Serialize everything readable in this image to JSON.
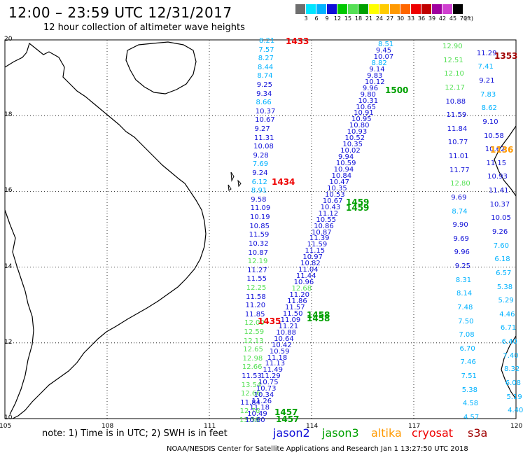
{
  "header": {
    "title": "12:00 – 23:59 UTC 12/31/2017",
    "subtitle": "12 hour collection of altimeter wave heights"
  },
  "color_scale": {
    "labels": [
      "3",
      "6",
      "9",
      "12",
      "15",
      "18",
      "21",
      "24",
      "27",
      "30",
      "33",
      "36",
      "39",
      "42",
      "45",
      "70"
    ],
    "unit": "(ft)",
    "colors": [
      "#6e6e6e",
      "#00e5ff",
      "#00b2ff",
      "#1010d8",
      "#00c800",
      "#55e055",
      "#00a000",
      "#ffff00",
      "#ffcc00",
      "#ff9900",
      "#ff6600",
      "#ee0000",
      "#c00000",
      "#a000a0",
      "#d040d0",
      "#000000"
    ]
  },
  "map": {
    "x_ticks": [
      "105",
      "108",
      "111",
      "114",
      "117",
      "120"
    ],
    "y_ticks": [
      "20",
      "18",
      "16",
      "14",
      "12",
      "10"
    ],
    "x_range": [
      105,
      120
    ],
    "y_range": [
      10,
      20
    ]
  },
  "tracks": {
    "track_a": {
      "satellite": "jason2",
      "values": [
        "8.21",
        "7.57",
        "8.27",
        "8.44",
        "8.74",
        "9.25",
        "9.34",
        "8.66",
        "10.37",
        "10.67",
        "9.27",
        "11.31",
        "10.08",
        "9.28",
        "7.69",
        "9.24",
        "6.12",
        "8.91",
        "9.58",
        "11.09",
        "10.19",
        "10.85",
        "11.59",
        "10.32",
        "10.87",
        "12.19",
        "11.27",
        "11.55",
        "12.25",
        "11.58",
        "11.20",
        "11.85",
        "12.00",
        "12.59",
        "12.13",
        "12.65",
        "12.98",
        "12.66",
        "11.53",
        "13.54",
        "12.66",
        "11.84",
        "12.76",
        "13.56"
      ]
    },
    "track_b": {
      "satellite": "jason2",
      "values": [
        "8.51",
        "9.45",
        "10.07",
        "8.82",
        "9.14",
        "9.83",
        "10.12",
        "9.96",
        "9.80",
        "10.31",
        "10.65",
        "10.91",
        "10.95",
        "10.80",
        "10.93",
        "10.52",
        "10.35",
        "10.02",
        "9.94",
        "10.59",
        "10.94",
        "10.84",
        "10.47",
        "10.35",
        "10.53",
        "10.67",
        "10.43",
        "11.12",
        "10.55",
        "10.86",
        "10.87",
        "11.39",
        "11.59",
        "11.15",
        "10.97",
        "10.82",
        "11.04",
        "11.44",
        "10.96",
        "12.68",
        "11.20",
        "11.86",
        "11.57",
        "11.50",
        "11.09",
        "11.21",
        "10.88",
        "10.64",
        "10.42",
        "10.59",
        "11.18",
        "11.13",
        "11.49",
        "11.29",
        "10.75",
        "10.73",
        "10.34",
        "11.26",
        "11.18",
        "10.49",
        "10.60"
      ]
    },
    "track_c": {
      "satellite": "jason2",
      "values": [
        "12.90",
        "11.29",
        "12.51",
        "7.41",
        "12.10",
        "9.21",
        "12.17",
        "7.83",
        "10.88",
        "8.62",
        "11.59",
        "9.10",
        "11.84",
        "10.58",
        "10.77",
        "10.62",
        "11.01",
        "11.15",
        "11.77",
        "10.93",
        "12.80",
        "11.41",
        "9.69",
        "10.37",
        "8.74",
        "10.05",
        "9.90",
        "9.26",
        "9.69",
        "7.60",
        "9.96",
        "6.18",
        "9.25",
        "6.57",
        "8.31",
        "5.38",
        "8.14",
        "5.29",
        "7.48",
        "4.46",
        "7.50",
        "6.71",
        "7.08",
        "6.40",
        "6.70",
        "7.40",
        "7.46",
        "8.32",
        "7.51",
        "6.08",
        "5.38",
        "5.19",
        "4.58",
        "4.40",
        "4.57"
      ]
    },
    "times": [
      {
        "label": "1433",
        "satellite": "cryosat"
      },
      {
        "label": "1434",
        "satellite": "cryosat"
      },
      {
        "label": "1435",
        "satellite": "cryosat"
      },
      {
        "label": "1500",
        "satellite": "jason3"
      },
      {
        "label": "1459",
        "satellite": "jason3"
      },
      {
        "label": "1459",
        "satellite": "jason3"
      },
      {
        "label": "1458",
        "satellite": "jason3"
      },
      {
        "label": "1458",
        "satellite": "jason3"
      },
      {
        "label": "1457",
        "satellite": "jason3"
      },
      {
        "label": "1457",
        "satellite": "jason3"
      },
      {
        "label": "1353",
        "satellite": "s3a"
      },
      {
        "label": "1136",
        "satellite": "altika"
      }
    ]
  },
  "footer": {
    "note": "note:  1) Time is in UTC;  2) SWH is in feet",
    "satellites": [
      {
        "label": "jason2",
        "color": "#1010d8"
      },
      {
        "label": "jason3",
        "color": "#00a000"
      },
      {
        "label": "altika",
        "color": "#ff9900"
      },
      {
        "label": "cryosat",
        "color": "#ee0000"
      },
      {
        "label": "s3a",
        "color": "#a00000"
      }
    ],
    "credit": "NOAA/NESDIS Center for Satellite Applications and Research     Jan  1 13:27:50 UTC 2018"
  }
}
